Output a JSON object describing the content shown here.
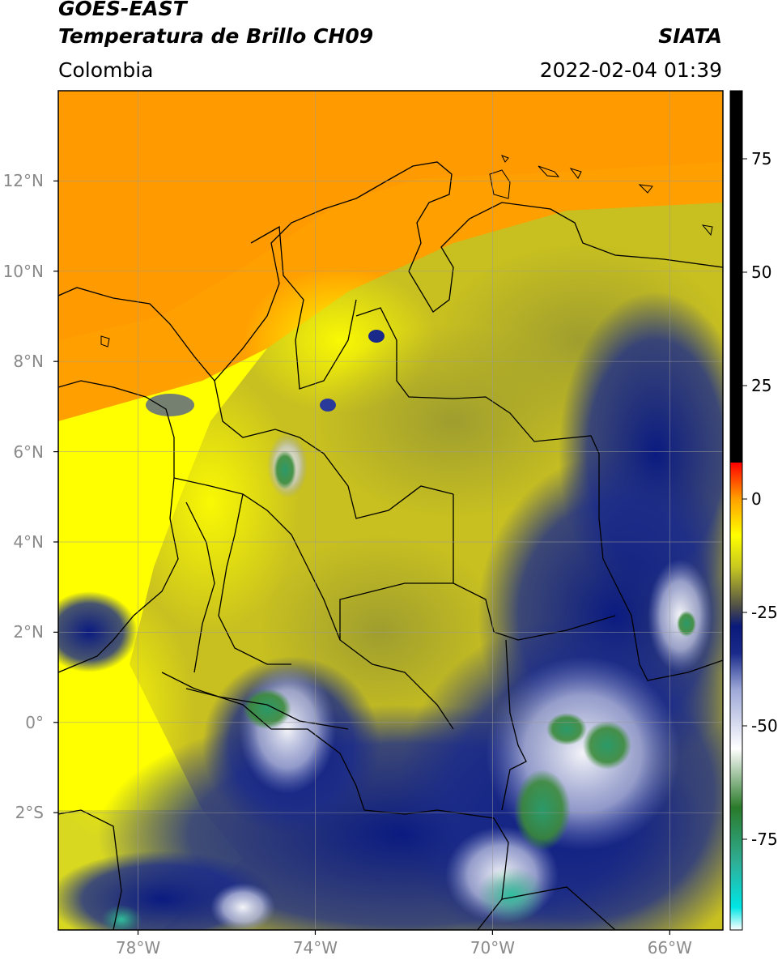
{
  "header": {
    "satellite": "GOES-EAST",
    "product": "Temperatura de Brillo CH09",
    "region": "Colombia",
    "agency": "SIATA",
    "datetime": "2022-02-04 01:39"
  },
  "map": {
    "lat_labels": [
      {
        "text": "12°N",
        "lat": 12
      },
      {
        "text": "10°N",
        "lat": 10
      },
      {
        "text": "8°N",
        "lat": 8
      },
      {
        "text": "6°N",
        "lat": 6
      },
      {
        "text": "4°N",
        "lat": 4
      },
      {
        "text": "2°N",
        "lat": 2
      },
      {
        "text": "0°",
        "lat": 0
      },
      {
        "text": "2°S",
        "lat": -2
      }
    ],
    "lon_labels": [
      {
        "text": "78°W",
        "lon": -78
      },
      {
        "text": "74°W",
        "lon": -74
      },
      {
        "text": "70°W",
        "lon": -70
      },
      {
        "text": "66°W",
        "lon": -66
      }
    ],
    "extent": {
      "lon_min": -79.8,
      "lon_max": -64.8,
      "lat_min": -4.6,
      "lat_max": 14.0
    }
  },
  "colorbar": {
    "min": -95,
    "max": 90,
    "ticks": [
      {
        "text": "75",
        "value": 75
      },
      {
        "text": "50",
        "value": 50
      },
      {
        "text": "25",
        "value": 25
      },
      {
        "text": "0",
        "value": 0
      },
      {
        "text": "-25",
        "value": -25
      },
      {
        "text": "-50",
        "value": -50
      },
      {
        "text": "-75",
        "value": -75
      }
    ],
    "stops": [
      {
        "value": -95,
        "color": "#ffffff"
      },
      {
        "value": -90,
        "color": "#00e5e5"
      },
      {
        "value": -80,
        "color": "#2fae95"
      },
      {
        "value": -68,
        "color": "#2a7a2a"
      },
      {
        "value": -55,
        "color": "#ffffff"
      },
      {
        "value": -42,
        "color": "#9da8d8"
      },
      {
        "value": -34,
        "color": "#1a2a8a"
      },
      {
        "value": -28,
        "color": "#0a1a7a"
      },
      {
        "value": -24,
        "color": "#4a4a4a"
      },
      {
        "value": -15,
        "color": "#c8c820"
      },
      {
        "value": -8,
        "color": "#ffff00"
      },
      {
        "value": 0,
        "color": "#ffa000"
      },
      {
        "value": 8,
        "color": "#ff0000"
      },
      {
        "value": 8.01,
        "color": "#000000"
      },
      {
        "value": 90,
        "color": "#000000"
      }
    ]
  }
}
